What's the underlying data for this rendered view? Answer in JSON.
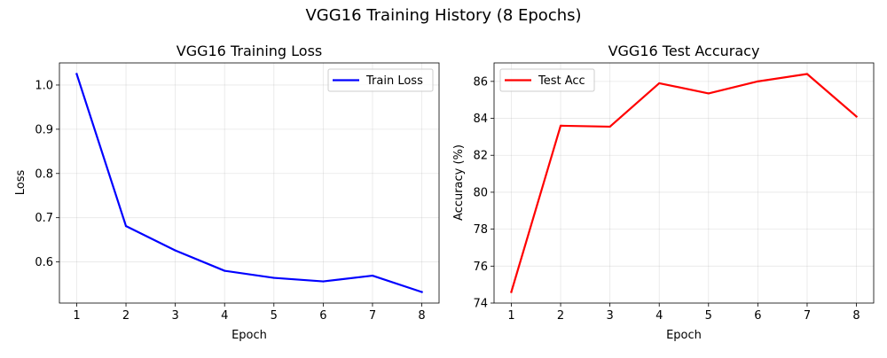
{
  "figure_title": "VGG16 Training History (8 Epochs)",
  "chart_data": [
    {
      "type": "line",
      "title": "VGG16 Training Loss",
      "xlabel": "Epoch",
      "ylabel": "Loss",
      "x": [
        1,
        2,
        3,
        4,
        5,
        6,
        7,
        8
      ],
      "series": [
        {
          "name": "Train Loss",
          "color": "#0000ff",
          "values": [
            1.025,
            0.681,
            0.626,
            0.58,
            0.564,
            0.556,
            0.569,
            0.532
          ]
        }
      ],
      "xlim": [
        0.65,
        8.35
      ],
      "ylim": [
        0.507,
        1.05
      ],
      "xticks": [
        1,
        2,
        3,
        4,
        5,
        6,
        7,
        8
      ],
      "xtick_labels": [
        "1",
        "2",
        "3",
        "4",
        "5",
        "6",
        "7",
        "8"
      ],
      "yticks": [
        0.6,
        0.7,
        0.8,
        0.9,
        1.0
      ],
      "ytick_labels": [
        "0.6",
        "0.7",
        "0.8",
        "0.9",
        "1.0"
      ],
      "grid": true,
      "legend": "upper right"
    },
    {
      "type": "line",
      "title": "VGG16 Test Accuracy",
      "xlabel": "Epoch",
      "ylabel": "Accuracy (%)",
      "x": [
        1,
        2,
        3,
        4,
        5,
        6,
        7,
        8
      ],
      "series": [
        {
          "name": "Test Acc",
          "color": "#ff0000",
          "values": [
            74.6,
            83.6,
            83.55,
            85.9,
            85.35,
            86.0,
            86.4,
            84.1
          ]
        }
      ],
      "xlim": [
        0.65,
        8.35
      ],
      "ylim": [
        74.0,
        87.0
      ],
      "xticks": [
        1,
        2,
        3,
        4,
        5,
        6,
        7,
        8
      ],
      "xtick_labels": [
        "1",
        "2",
        "3",
        "4",
        "5",
        "6",
        "7",
        "8"
      ],
      "yticks": [
        74,
        76,
        78,
        80,
        82,
        84,
        86
      ],
      "ytick_labels": [
        "74",
        "76",
        "78",
        "80",
        "82",
        "84",
        "86"
      ],
      "grid": true,
      "legend": "upper left"
    }
  ]
}
